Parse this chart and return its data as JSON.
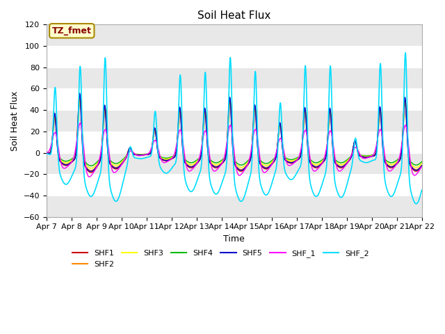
{
  "title": "Soil Heat Flux",
  "xlabel": "Time",
  "ylabel": "Soil Heat Flux",
  "annotation": "TZ_fmet",
  "ylim": [
    -60,
    120
  ],
  "xlim": [
    0,
    15
  ],
  "xtick_labels": [
    "Apr 7",
    "Apr 8",
    "Apr 9",
    "Apr 10",
    "Apr 11",
    "Apr 12",
    "Apr 13",
    "Apr 14",
    "Apr 15",
    "Apr 16",
    "Apr 17",
    "Apr 18",
    "Apr 19",
    "Apr 20",
    "Apr 21",
    "Apr 22"
  ],
  "series_colors": {
    "SHF1": "#cc0000",
    "SHF2": "#ff8800",
    "SHF3": "#ffff00",
    "SHF4": "#00bb00",
    "SHF5": "#0000cc",
    "SHF_1": "#ff00ff",
    "SHF_2": "#00ddff"
  },
  "fig_bg": "#ffffff",
  "plot_bg": "#ffffff",
  "grid_color": "#cccccc",
  "title_fontsize": 11,
  "label_fontsize": 9,
  "tick_fontsize": 8,
  "band_color": "#e8e8e8"
}
